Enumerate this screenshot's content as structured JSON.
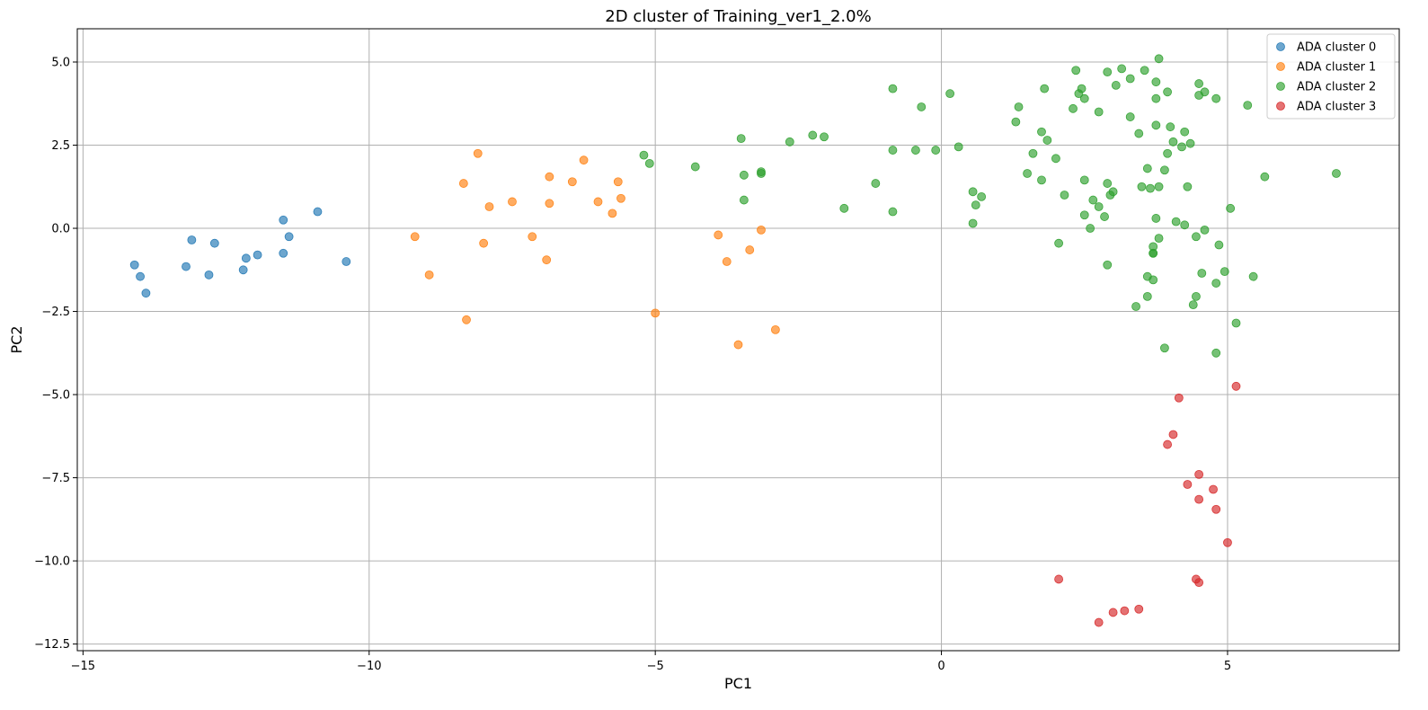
{
  "chart_data": {
    "type": "scatter",
    "title": "2D cluster of Training_ver1_2.0%",
    "xlabel": "PC1",
    "ylabel": "PC2",
    "xlim": [
      -15.1,
      8.0
    ],
    "ylim": [
      -12.7,
      6.0
    ],
    "x_ticks": [
      -15,
      -10,
      -5,
      0,
      5
    ],
    "x_tick_labels": [
      "−15",
      "−10",
      "−5",
      "0",
      "5"
    ],
    "y_ticks": [
      5.0,
      2.5,
      0.0,
      -2.5,
      -5.0,
      -7.5,
      -10.0,
      -12.5
    ],
    "y_tick_labels": [
      "5.0",
      "2.5",
      "0.0",
      "−2.5",
      "−5.0",
      "−7.5",
      "−10.0",
      "−12.5"
    ],
    "grid": true,
    "legend_position": "top-right",
    "series": [
      {
        "name": "ADA cluster 0",
        "color": "#1f77b4",
        "points": [
          [
            -14.1,
            -1.1
          ],
          [
            -14.0,
            -1.45
          ],
          [
            -13.9,
            -1.95
          ],
          [
            -13.2,
            -1.15
          ],
          [
            -13.1,
            -0.35
          ],
          [
            -12.8,
            -1.4
          ],
          [
            -12.7,
            -0.45
          ],
          [
            -12.2,
            -1.25
          ],
          [
            -12.15,
            -0.9
          ],
          [
            -11.95,
            -0.8
          ],
          [
            -11.5,
            0.25
          ],
          [
            -11.5,
            -0.75
          ],
          [
            -11.4,
            -0.25
          ],
          [
            -10.9,
            0.5
          ],
          [
            -10.4,
            -1.0
          ]
        ]
      },
      {
        "name": "ADA cluster 1",
        "color": "#ff7f0e",
        "points": [
          [
            -9.2,
            -0.25
          ],
          [
            -8.95,
            -1.4
          ],
          [
            -8.35,
            1.35
          ],
          [
            -8.3,
            -2.75
          ],
          [
            -8.1,
            2.25
          ],
          [
            -8.0,
            -0.45
          ],
          [
            -7.9,
            0.65
          ],
          [
            -7.5,
            0.8
          ],
          [
            -7.15,
            -0.25
          ],
          [
            -6.9,
            -0.95
          ],
          [
            -6.85,
            1.55
          ],
          [
            -6.85,
            0.75
          ],
          [
            -6.45,
            1.4
          ],
          [
            -6.25,
            2.05
          ],
          [
            -6.0,
            0.8
          ],
          [
            -5.75,
            0.45
          ],
          [
            -5.65,
            1.4
          ],
          [
            -5.6,
            0.9
          ],
          [
            -5.0,
            -2.55
          ],
          [
            -3.9,
            -0.2
          ],
          [
            -3.75,
            -1.0
          ],
          [
            -3.55,
            -3.5
          ],
          [
            -3.35,
            -0.65
          ],
          [
            -3.15,
            -0.05
          ],
          [
            -2.9,
            -3.05
          ]
        ]
      },
      {
        "name": "ADA cluster 2",
        "color": "#2ca02c",
        "points": [
          [
            -5.2,
            2.2
          ],
          [
            -5.1,
            1.95
          ],
          [
            -4.3,
            1.85
          ],
          [
            -3.5,
            2.7
          ],
          [
            -3.45,
            1.6
          ],
          [
            -3.45,
            0.85
          ],
          [
            -3.15,
            1.7
          ],
          [
            -3.15,
            1.65
          ],
          [
            -2.65,
            2.6
          ],
          [
            -2.25,
            2.8
          ],
          [
            -2.05,
            2.75
          ],
          [
            -1.7,
            0.6
          ],
          [
            -1.15,
            1.35
          ],
          [
            -0.85,
            4.2
          ],
          [
            -0.85,
            2.35
          ],
          [
            -0.85,
            0.5
          ],
          [
            -0.45,
            2.35
          ],
          [
            -0.35,
            3.65
          ],
          [
            -0.1,
            2.35
          ],
          [
            0.15,
            4.05
          ],
          [
            0.3,
            2.45
          ],
          [
            0.55,
            1.1
          ],
          [
            0.55,
            0.15
          ],
          [
            0.6,
            0.7
          ],
          [
            0.7,
            0.95
          ],
          [
            1.3,
            3.2
          ],
          [
            1.35,
            3.65
          ],
          [
            1.5,
            1.65
          ],
          [
            1.6,
            2.25
          ],
          [
            1.75,
            1.45
          ],
          [
            1.75,
            2.9
          ],
          [
            1.8,
            4.2
          ],
          [
            1.85,
            2.65
          ],
          [
            2.0,
            2.1
          ],
          [
            2.05,
            -0.45
          ],
          [
            2.15,
            1.0
          ],
          [
            2.3,
            3.6
          ],
          [
            2.35,
            4.75
          ],
          [
            2.4,
            4.05
          ],
          [
            2.45,
            4.2
          ],
          [
            2.5,
            3.9
          ],
          [
            2.5,
            1.45
          ],
          [
            2.5,
            0.4
          ],
          [
            2.6,
            0.0
          ],
          [
            2.65,
            0.85
          ],
          [
            2.75,
            0.65
          ],
          [
            2.75,
            3.5
          ],
          [
            2.85,
            0.35
          ],
          [
            2.9,
            1.35
          ],
          [
            2.9,
            4.7
          ],
          [
            2.9,
            -1.1
          ],
          [
            2.95,
            1.0
          ],
          [
            3.0,
            1.1
          ],
          [
            3.05,
            4.3
          ],
          [
            3.15,
            4.8
          ],
          [
            3.3,
            4.5
          ],
          [
            3.3,
            3.35
          ],
          [
            3.4,
            -2.35
          ],
          [
            3.45,
            2.85
          ],
          [
            3.5,
            1.25
          ],
          [
            3.55,
            4.75
          ],
          [
            3.6,
            -1.45
          ],
          [
            3.6,
            -2.05
          ],
          [
            3.6,
            1.8
          ],
          [
            3.65,
            1.2
          ],
          [
            3.7,
            -0.55
          ],
          [
            3.7,
            -0.75
          ],
          [
            3.7,
            -0.75
          ],
          [
            3.7,
            -1.55
          ],
          [
            3.75,
            3.9
          ],
          [
            3.75,
            4.4
          ],
          [
            3.75,
            0.3
          ],
          [
            3.75,
            3.1
          ],
          [
            3.8,
            5.1
          ],
          [
            3.8,
            1.25
          ],
          [
            3.8,
            -0.3
          ],
          [
            3.9,
            1.75
          ],
          [
            3.9,
            -3.6
          ],
          [
            3.95,
            4.1
          ],
          [
            3.95,
            2.25
          ],
          [
            4.0,
            3.05
          ],
          [
            4.05,
            2.6
          ],
          [
            4.1,
            0.2
          ],
          [
            4.2,
            2.45
          ],
          [
            4.25,
            2.9
          ],
          [
            4.25,
            0.1
          ],
          [
            4.3,
            1.25
          ],
          [
            4.35,
            2.55
          ],
          [
            4.4,
            -2.3
          ],
          [
            4.45,
            -2.05
          ],
          [
            4.45,
            -0.25
          ],
          [
            4.5,
            4.35
          ],
          [
            4.5,
            4.0
          ],
          [
            4.55,
            -1.35
          ],
          [
            4.6,
            4.1
          ],
          [
            4.6,
            -0.05
          ],
          [
            4.8,
            -1.65
          ],
          [
            4.8,
            3.9
          ],
          [
            4.85,
            -0.5
          ],
          [
            4.8,
            -3.75
          ],
          [
            4.95,
            -1.3
          ],
          [
            5.05,
            0.6
          ],
          [
            5.15,
            -2.85
          ],
          [
            5.35,
            3.7
          ],
          [
            5.45,
            -1.45
          ],
          [
            5.65,
            1.55
          ],
          [
            6.9,
            1.65
          ]
        ]
      },
      {
        "name": "ADA cluster 3",
        "color": "#d62728",
        "points": [
          [
            2.05,
            -10.55
          ],
          [
            2.75,
            -11.85
          ],
          [
            3.0,
            -11.55
          ],
          [
            3.2,
            -11.5
          ],
          [
            3.45,
            -11.45
          ],
          [
            3.95,
            -6.5
          ],
          [
            4.05,
            -6.2
          ],
          [
            4.15,
            -5.1
          ],
          [
            4.3,
            -7.7
          ],
          [
            4.45,
            -10.55
          ],
          [
            4.5,
            -10.65
          ],
          [
            4.5,
            -8.15
          ],
          [
            4.5,
            -7.4
          ],
          [
            4.75,
            -7.85
          ],
          [
            4.8,
            -8.45
          ],
          [
            5.0,
            -9.45
          ],
          [
            5.15,
            -4.75
          ]
        ]
      }
    ]
  }
}
